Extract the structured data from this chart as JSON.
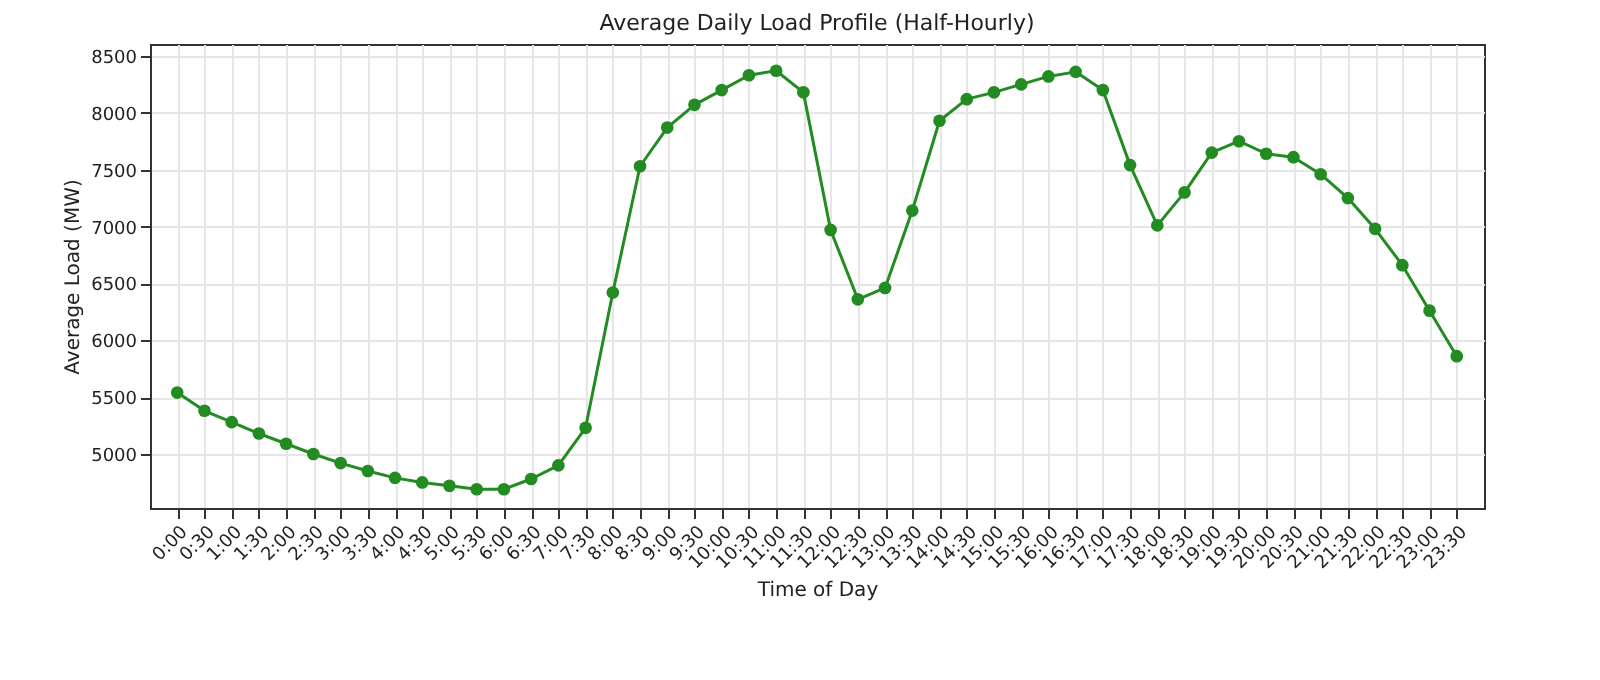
{
  "chart_data": {
    "type": "line",
    "title": "Average Daily Load Profile (Half-Hourly)",
    "xlabel": "Time of Day",
    "ylabel": "Average Load (MW)",
    "categories": [
      "0:00",
      "0:30",
      "1:00",
      "1:30",
      "2:00",
      "2:30",
      "3:00",
      "3:30",
      "4:00",
      "4:30",
      "5:00",
      "5:30",
      "6:00",
      "6:30",
      "7:00",
      "7:30",
      "8:00",
      "8:30",
      "9:00",
      "9:30",
      "10:00",
      "10:30",
      "11:00",
      "11:30",
      "12:00",
      "12:30",
      "13:00",
      "13:30",
      "14:00",
      "14:30",
      "15:00",
      "15:30",
      "16:00",
      "16:30",
      "17:00",
      "17:30",
      "18:00",
      "18:30",
      "19:00",
      "19:30",
      "20:00",
      "20:30",
      "21:00",
      "21:30",
      "22:00",
      "22:30",
      "23:00",
      "23:30"
    ],
    "series": [
      {
        "color": "#228b22",
        "values": [
          5540,
          5380,
          5280,
          5180,
          5090,
          5000,
          4920,
          4850,
          4790,
          4750,
          4720,
          4690,
          4690,
          4780,
          4900,
          5230,
          6420,
          7530,
          7870,
          8070,
          8200,
          8330,
          8370,
          8180,
          6970,
          6360,
          6460,
          7140,
          7930,
          8120,
          8180,
          8250,
          8320,
          8360,
          8200,
          7540,
          7010,
          7300,
          7650,
          7750,
          7640,
          7610,
          7460,
          7250,
          6980,
          6660,
          6260,
          5860
        ]
      }
    ],
    "ylim": [
      4525,
      8605
    ],
    "yticks": [
      5000,
      5500,
      6000,
      6500,
      7000,
      7500,
      8000,
      8500
    ],
    "grid": true,
    "marker": "circle",
    "line_style": "solid"
  }
}
